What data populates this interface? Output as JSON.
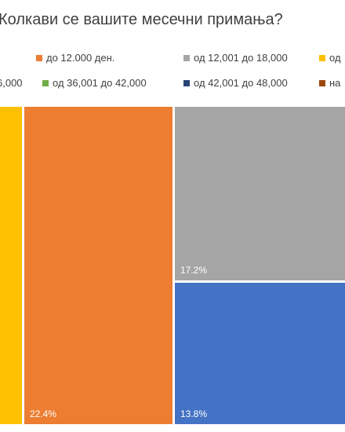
{
  "chart_data": {
    "type": "treemap",
    "title": "Колкави се вашите месечни примања?",
    "legend": [
      {
        "label": "до 12.000 ден.",
        "color": "#ED7D31"
      },
      {
        "label": "од 12,001 до 18,000",
        "color": "#A5A5A5"
      },
      {
        "label": "од",
        "color": "#FFC000"
      },
      {
        "label": "6,000",
        "color": null
      },
      {
        "label": "од 36,001 до 42,000",
        "color": "#70AD47"
      },
      {
        "label": "од 42,001 до 48,000",
        "color": "#264478"
      },
      {
        "label": "на",
        "color": "#9E480E"
      }
    ],
    "series": [
      {
        "name": "од",
        "color": "#FFC000",
        "label": ""
      },
      {
        "name": "до 12.000 ден.",
        "color": "#ED7D31",
        "value": 22.4,
        "label": "22.4%"
      },
      {
        "name": "од 12,001 до 18,000",
        "color": "#A5A5A5",
        "value": 17.2,
        "label": "17.2%"
      },
      {
        "name": "",
        "color": "#4472C4",
        "value": 13.8,
        "label": "13.8%"
      }
    ]
  }
}
